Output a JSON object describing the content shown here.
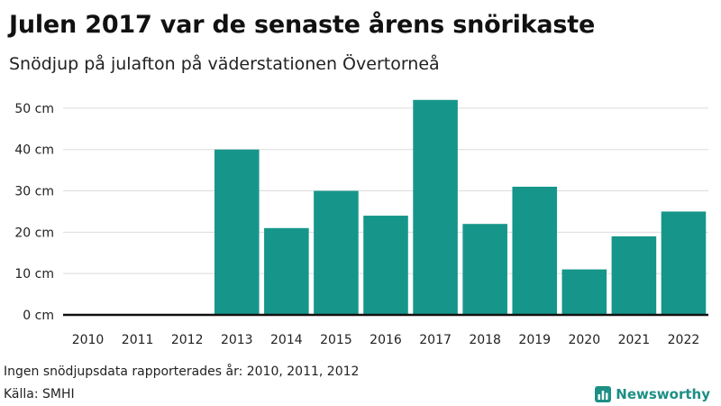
{
  "title": "Julen 2017 var de senaste årens snörikaste",
  "subtitle": "Snödjup på julafton på väderstationen Övertorneå",
  "note": "Ingen snödjupsdata rapporterades år: 2010, 2011, 2012",
  "source": "Källa: SMHI",
  "brand": {
    "name": "Newsworthy",
    "icon": "bar-chart-logo-icon",
    "color": "#1d8f85"
  },
  "colors": {
    "bar": "#16968a",
    "grid": "#dcdcdc",
    "axis": "#111111"
  },
  "chart_data": {
    "type": "bar",
    "title": "Julen 2017 var de senaste årens snörikaste",
    "subtitle": "Snödjup på julafton på väderstationen Övertorneå",
    "xlabel": "",
    "ylabel": "",
    "unit": "cm",
    "categories": [
      "2010",
      "2011",
      "2012",
      "2013",
      "2014",
      "2015",
      "2016",
      "2017",
      "2018",
      "2019",
      "2020",
      "2021",
      "2022"
    ],
    "values": [
      0,
      0,
      0,
      40,
      21,
      30,
      24,
      52,
      22,
      31,
      11,
      19,
      25
    ],
    "y_ticks": [
      0,
      10,
      20,
      30,
      40,
      50
    ],
    "y_tick_labels": [
      "0 cm",
      "10 cm",
      "20 cm",
      "30 cm",
      "40 cm",
      "50 cm"
    ],
    "ylim": [
      0,
      55
    ],
    "grid": true,
    "legend": "none"
  }
}
